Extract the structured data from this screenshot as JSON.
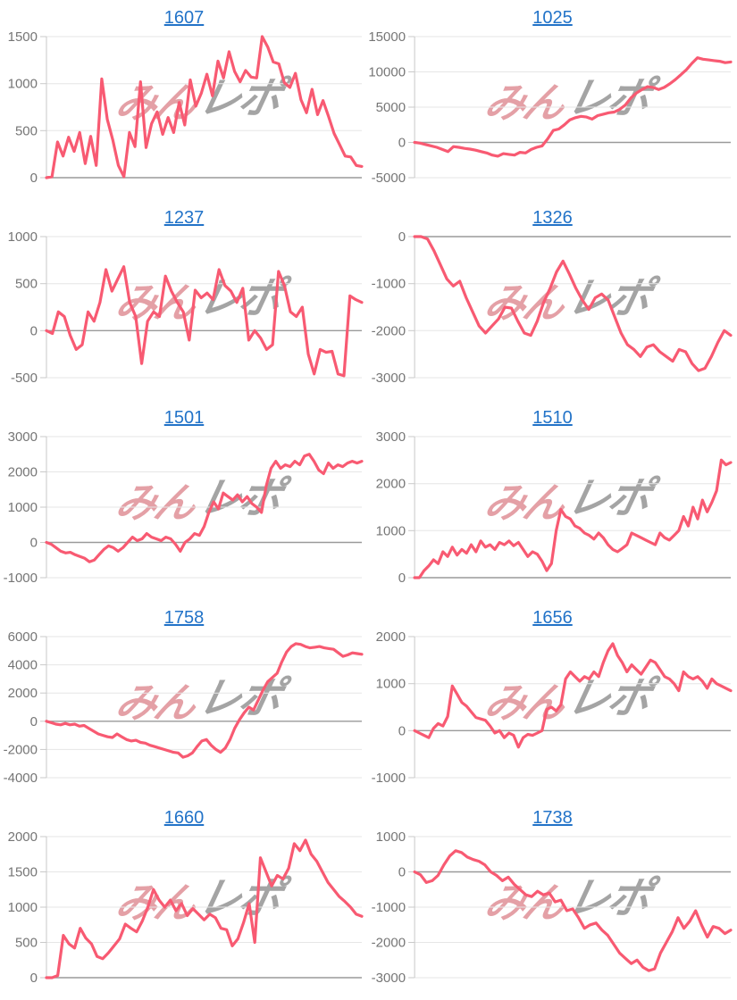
{
  "watermark": {
    "pink": "みん",
    "gray": "レポ"
  },
  "colors": {
    "line": "#f85a72",
    "title_link": "#2273c8",
    "tick_label": "#757575",
    "gridline": "#e6e6e6",
    "zero_line": "#9a9a9a",
    "axis_line": "#c9c9c9",
    "watermark_pink": "#e4a0a6",
    "watermark_gray": "#a4a4a4"
  },
  "chart_data": [
    {
      "type": "line",
      "title": "1607",
      "ylim": [
        0,
        1500
      ],
      "yticks": [
        0,
        500,
        1000,
        1500
      ],
      "values": [
        0,
        10,
        380,
        230,
        430,
        280,
        480,
        150,
        440,
        130,
        1050,
        620,
        400,
        130,
        10,
        480,
        330,
        1020,
        320,
        575,
        700,
        460,
        640,
        480,
        800,
        560,
        1040,
        760,
        900,
        1100,
        870,
        1240,
        1060,
        1340,
        1130,
        1020,
        1140,
        1070,
        1060,
        1500,
        1390,
        1230,
        1210,
        1010,
        960,
        1110,
        830,
        690,
        940,
        670,
        820,
        650,
        470,
        350,
        230,
        220,
        130,
        120
      ]
    },
    {
      "type": "line",
      "title": "1025",
      "ylim": [
        -5000,
        15000
      ],
      "yticks": [
        -5000,
        0,
        5000,
        10000,
        15000
      ],
      "values": [
        0,
        -100,
        -300,
        -500,
        -700,
        -1000,
        -1300,
        -600,
        -700,
        -850,
        -950,
        -1100,
        -1300,
        -1500,
        -1800,
        -1950,
        -1600,
        -1700,
        -1800,
        -1400,
        -1500,
        -1000,
        -700,
        -500,
        500,
        1700,
        1900,
        2500,
        3200,
        3500,
        3700,
        3600,
        3300,
        3800,
        4000,
        4200,
        4300,
        4700,
        5300,
        6300,
        7000,
        7500,
        7900,
        7800,
        7500,
        7800,
        8300,
        8900,
        9600,
        10300,
        11200,
        12000,
        11800,
        11700,
        11600,
        11500,
        11300,
        11400
      ]
    },
    {
      "type": "line",
      "title": "1237",
      "ylim": [
        -500,
        1000
      ],
      "yticks": [
        -500,
        0,
        500,
        1000
      ],
      "values": [
        0,
        -30,
        200,
        150,
        -50,
        -200,
        -150,
        200,
        100,
        300,
        650,
        420,
        550,
        680,
        300,
        150,
        -350,
        100,
        200,
        150,
        580,
        420,
        300,
        200,
        -100,
        430,
        350,
        400,
        330,
        650,
        480,
        420,
        300,
        450,
        -100,
        0,
        -80,
        -200,
        -150,
        630,
        480,
        200,
        150,
        250,
        -250,
        -460,
        -200,
        -230,
        -220,
        -460,
        -480,
        370,
        330,
        300
      ]
    },
    {
      "type": "line",
      "title": "1326",
      "ylim": [
        -3000,
        0
      ],
      "yticks": [
        -3000,
        -2000,
        -1000,
        0
      ],
      "values": [
        0,
        0,
        -50,
        -300,
        -600,
        -900,
        -1050,
        -950,
        -1300,
        -1600,
        -1900,
        -2050,
        -1900,
        -1750,
        -1500,
        -1520,
        -1800,
        -2050,
        -2100,
        -1800,
        -1400,
        -1100,
        -750,
        -520,
        -800,
        -1100,
        -1350,
        -1550,
        -1300,
        -1220,
        -1350,
        -1700,
        -2050,
        -2300,
        -2400,
        -2550,
        -2350,
        -2300,
        -2450,
        -2550,
        -2650,
        -2400,
        -2450,
        -2700,
        -2850,
        -2800,
        -2550,
        -2250,
        -2000,
        -2100
      ]
    },
    {
      "type": "line",
      "title": "1501",
      "ylim": [
        -1000,
        3000
      ],
      "yticks": [
        -1000,
        0,
        1000,
        2000,
        3000
      ],
      "values": [
        0,
        -50,
        -150,
        -250,
        -300,
        -280,
        -350,
        -400,
        -450,
        -550,
        -500,
        -350,
        -200,
        -100,
        -150,
        -250,
        -150,
        0,
        150,
        50,
        100,
        250,
        150,
        100,
        50,
        150,
        100,
        -50,
        -250,
        0,
        100,
        250,
        200,
        450,
        850,
        1150,
        950,
        1400,
        1300,
        1200,
        1350,
        1150,
        1300,
        1100,
        1000,
        850,
        1600,
        2100,
        2300,
        2100,
        2200,
        2150,
        2300,
        2200,
        2450,
        2500,
        2300,
        2050,
        1950,
        2250,
        2100,
        2200,
        2150,
        2250,
        2300,
        2250,
        2300
      ]
    },
    {
      "type": "line",
      "title": "1510",
      "ylim": [
        0,
        3000
      ],
      "yticks": [
        0,
        1000,
        2000,
        3000
      ],
      "values": [
        0,
        0,
        150,
        250,
        380,
        300,
        550,
        450,
        650,
        480,
        600,
        520,
        700,
        550,
        780,
        650,
        700,
        600,
        750,
        700,
        780,
        680,
        750,
        600,
        450,
        550,
        500,
        350,
        150,
        300,
        1000,
        1450,
        1300,
        1250,
        1100,
        1050,
        950,
        900,
        820,
        950,
        850,
        700,
        600,
        550,
        620,
        700,
        950,
        900,
        850,
        800,
        750,
        700,
        950,
        850,
        800,
        900,
        1000,
        1300,
        1100,
        1500,
        1250,
        1650,
        1400,
        1600,
        1850,
        2500,
        2400,
        2450
      ]
    },
    {
      "type": "line",
      "title": "1758",
      "ylim": [
        -4000,
        6000
      ],
      "yticks": [
        -4000,
        -2000,
        0,
        2000,
        4000,
        6000
      ],
      "values": [
        0,
        -100,
        -200,
        -250,
        -150,
        -250,
        -200,
        -350,
        -300,
        -500,
        -700,
        -900,
        -1000,
        -1100,
        -1150,
        -900,
        -1100,
        -1300,
        -1400,
        -1350,
        -1500,
        -1550,
        -1700,
        -1800,
        -1900,
        -2000,
        -2100,
        -2200,
        -2250,
        -2550,
        -2450,
        -2250,
        -1800,
        -1400,
        -1300,
        -1700,
        -2000,
        -2200,
        -1900,
        -1300,
        -500,
        100,
        600,
        1000,
        800,
        1500,
        2200,
        2800,
        3100,
        3400,
        4200,
        4900,
        5300,
        5500,
        5450,
        5300,
        5200,
        5250,
        5300,
        5200,
        5150,
        5100,
        4850,
        4600,
        4700,
        4850,
        4800,
        4750
      ]
    },
    {
      "type": "line",
      "title": "1656",
      "ylim": [
        -1000,
        2000
      ],
      "yticks": [
        -1000,
        0,
        1000,
        2000
      ],
      "values": [
        0,
        -50,
        -100,
        -150,
        50,
        150,
        100,
        300,
        950,
        780,
        600,
        520,
        400,
        280,
        250,
        220,
        100,
        -50,
        0,
        -150,
        -50,
        -100,
        -350,
        -150,
        -80,
        -100,
        -50,
        0,
        450,
        500,
        420,
        550,
        1100,
        1250,
        1150,
        1050,
        1150,
        1100,
        1250,
        1150,
        1450,
        1700,
        1850,
        1600,
        1450,
        1250,
        1400,
        1300,
        1200,
        1350,
        1500,
        1450,
        1300,
        1150,
        1100,
        1000,
        850,
        1250,
        1150,
        1100,
        1150,
        1050,
        900,
        1100,
        1000,
        950,
        900,
        850
      ]
    },
    {
      "type": "line",
      "title": "1660",
      "ylim": [
        0,
        2000
      ],
      "yticks": [
        0,
        500,
        1000,
        1500,
        2000
      ],
      "values": [
        0,
        0,
        30,
        600,
        480,
        420,
        700,
        560,
        480,
        300,
        270,
        350,
        450,
        550,
        760,
        700,
        650,
        800,
        1000,
        1250,
        1100,
        1000,
        1100,
        950,
        1050,
        880,
        980,
        900,
        820,
        900,
        850,
        700,
        680,
        450,
        550,
        780,
        1050,
        500,
        1700,
        1500,
        1300,
        1450,
        1400,
        1550,
        1900,
        1800,
        1950,
        1750,
        1650,
        1500,
        1350,
        1250,
        1150,
        1080,
        1000,
        900,
        870
      ]
    },
    {
      "type": "line",
      "title": "1738",
      "ylim": [
        -3000,
        1000
      ],
      "yticks": [
        -3000,
        -2000,
        -1000,
        0,
        1000
      ],
      "values": [
        0,
        -80,
        -300,
        -250,
        -100,
        200,
        450,
        600,
        550,
        420,
        350,
        300,
        200,
        0,
        -100,
        -250,
        -150,
        -350,
        -500,
        -650,
        -700,
        -550,
        -650,
        -600,
        -850,
        -800,
        -1100,
        -1050,
        -1300,
        -1600,
        -1500,
        -1450,
        -1650,
        -1800,
        -2050,
        -2300,
        -2450,
        -2600,
        -2500,
        -2700,
        -2800,
        -2750,
        -2300,
        -2000,
        -1700,
        -1300,
        -1600,
        -1400,
        -1100,
        -1500,
        -1850,
        -1550,
        -1600,
        -1750,
        -1650
      ]
    }
  ]
}
